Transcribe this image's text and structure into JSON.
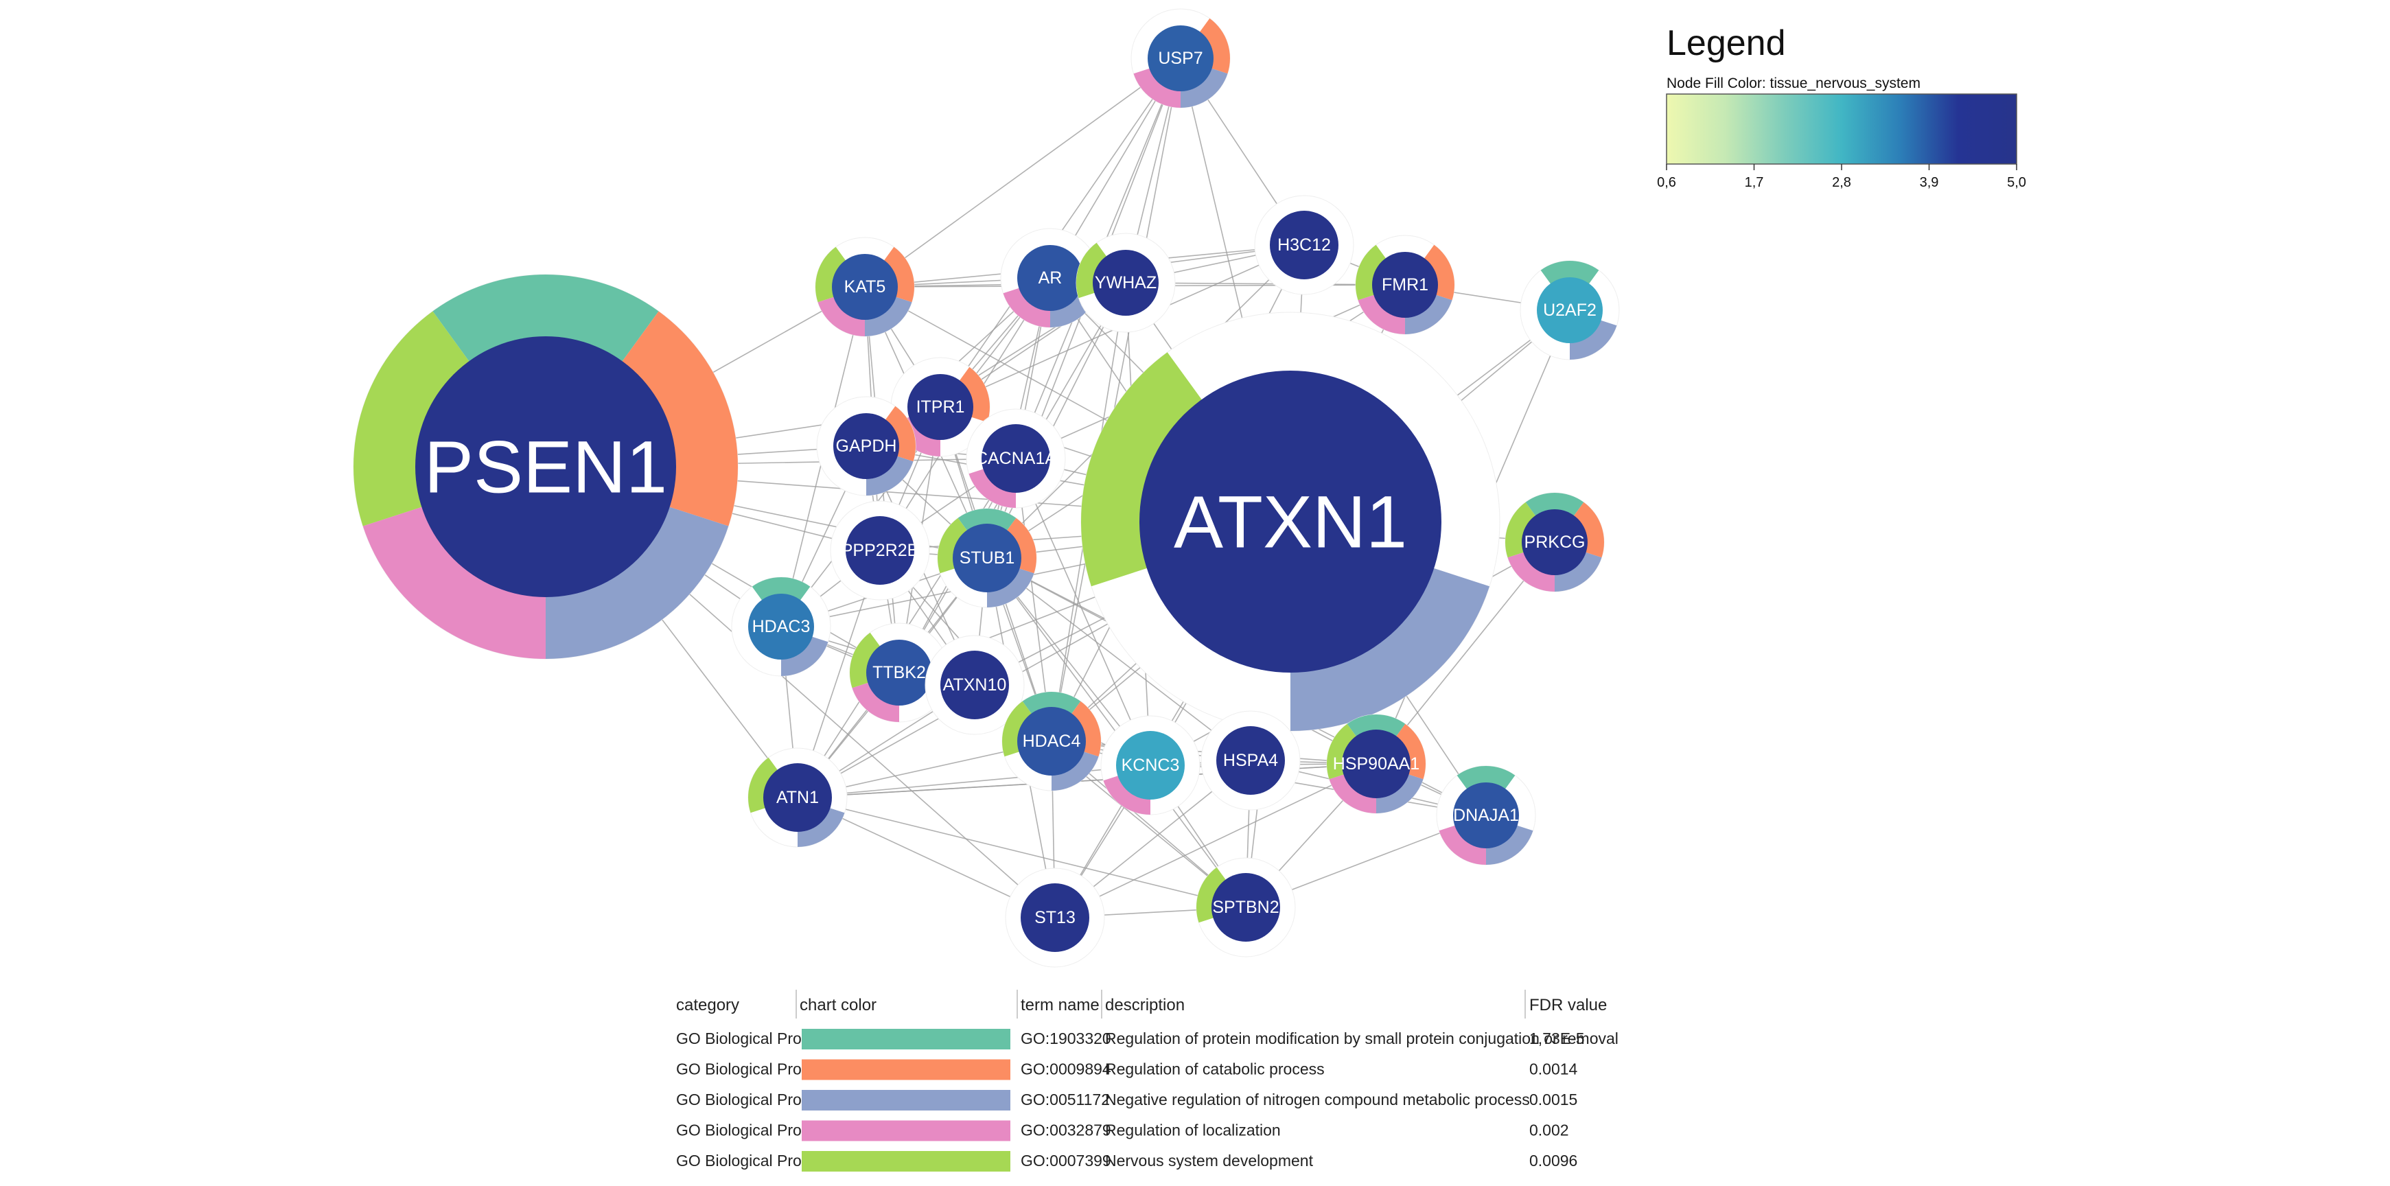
{
  "legend": {
    "title": "Legend",
    "subtitle": "Node Fill Color:  tissue_nervous_system",
    "gradient": [
      "#eef8b0",
      "#c6e9b4",
      "#7fcdbb",
      "#41b6c4",
      "#2c7fb8",
      "#253494",
      "#27348b"
    ],
    "ticks": [
      "0,6",
      "1,7",
      "2,8",
      "3,9",
      "5,0"
    ]
  },
  "table": {
    "headers": [
      "category",
      "chart color",
      "term name",
      "description",
      "FDR value"
    ],
    "rows": [
      {
        "category": "GO Biological Process",
        "color": "#66c2a5",
        "term": "GO:1903320",
        "description": "Regulation of protein modification by small protein conjugation or removal",
        "fdr": "1,73E-5"
      },
      {
        "category": "GO Biological Process",
        "color": "#fc8d62",
        "term": "GO:0009894",
        "description": "Regulation of catabolic process",
        "fdr": "0.0014"
      },
      {
        "category": "GO Biological Process",
        "color": "#8da0cb",
        "term": "GO:0051172",
        "description": "Negative regulation of nitrogen compound metabolic process",
        "fdr": "0.0015"
      },
      {
        "category": "GO Biological Process",
        "color": "#e78ac3",
        "term": "GO:0032879",
        "description": "Regulation of localization",
        "fdr": "0.002"
      },
      {
        "category": "GO Biological Process",
        "color": "#a6d854",
        "term": "GO:0007399",
        "description": "Nervous system development",
        "fdr": "0.0096"
      }
    ]
  },
  "nodes": [
    {
      "id": "PSEN1",
      "label": "PSEN1",
      "fill": "#27348b",
      "terms": [
        0,
        1,
        2,
        3,
        4
      ]
    },
    {
      "id": "ATXN1",
      "label": "ATXN1",
      "fill": "#27348b",
      "terms": [
        2,
        4
      ]
    },
    {
      "id": "USP7",
      "label": "USP7",
      "fill": "#2e60a8",
      "terms": [
        1,
        2,
        3
      ]
    },
    {
      "id": "KAT5",
      "label": "KAT5",
      "fill": "#2e55a3",
      "terms": [
        1,
        2,
        3,
        4
      ]
    },
    {
      "id": "AR",
      "label": "AR",
      "fill": "#2e55a3",
      "terms": [
        2,
        3
      ]
    },
    {
      "id": "YWHAZ",
      "label": "YWHAZ",
      "fill": "#27348b",
      "terms": [
        4
      ]
    },
    {
      "id": "H3C12",
      "label": "H3C12",
      "fill": "#27348b",
      "terms": []
    },
    {
      "id": "FMR1",
      "label": "FMR1",
      "fill": "#27348b",
      "terms": [
        1,
        2,
        3,
        4
      ]
    },
    {
      "id": "U2AF2",
      "label": "U2AF2",
      "fill": "#3aa7c4",
      "terms": [
        0,
        2
      ]
    },
    {
      "id": "ITPR1",
      "label": "ITPR1",
      "fill": "#27348b",
      "terms": [
        1,
        3
      ]
    },
    {
      "id": "GAPDH",
      "label": "GAPDH",
      "fill": "#27348b",
      "terms": [
        1,
        2
      ]
    },
    {
      "id": "CACNA1A",
      "label": "CACNA1A",
      "fill": "#27348b",
      "terms": [
        3
      ]
    },
    {
      "id": "PRKCG",
      "label": "PRKCG",
      "fill": "#27348b",
      "terms": [
        0,
        1,
        2,
        3,
        4
      ]
    },
    {
      "id": "PPP2R2B",
      "label": "PPP2R2B",
      "fill": "#27348b",
      "terms": []
    },
    {
      "id": "STUB1",
      "label": "STUB1",
      "fill": "#2e55a3",
      "terms": [
        0,
        1,
        2,
        4
      ]
    },
    {
      "id": "HDAC3",
      "label": "HDAC3",
      "fill": "#2f7ab5",
      "terms": [
        0,
        2
      ]
    },
    {
      "id": "TTBK2",
      "label": "TTBK2",
      "fill": "#2e55a3",
      "terms": [
        3,
        4
      ]
    },
    {
      "id": "ATXN10",
      "label": "ATXN10",
      "fill": "#27348b",
      "terms": []
    },
    {
      "id": "HDAC4",
      "label": "HDAC4",
      "fill": "#2e55a3",
      "terms": [
        0,
        1,
        2,
        4
      ]
    },
    {
      "id": "KCNC3",
      "label": "KCNC3",
      "fill": "#3aa7c4",
      "terms": [
        3
      ]
    },
    {
      "id": "HSPA4",
      "label": "HSPA4",
      "fill": "#27348b",
      "terms": []
    },
    {
      "id": "HSP90AA1",
      "label": "HSP90AA1",
      "fill": "#27348b",
      "terms": [
        0,
        1,
        2,
        3,
        4
      ]
    },
    {
      "id": "DNAJA1",
      "label": "DNAJA1",
      "fill": "#2e55a3",
      "terms": [
        0,
        2,
        3
      ]
    },
    {
      "id": "ATN1",
      "label": "ATN1",
      "fill": "#27348b",
      "terms": [
        2,
        4
      ]
    },
    {
      "id": "ST13",
      "label": "ST13",
      "fill": "#27348b",
      "terms": []
    },
    {
      "id": "SPTBN2",
      "label": "SPTBN2",
      "fill": "#27348b",
      "terms": [
        4
      ]
    }
  ],
  "edges": [
    [
      "PSEN1",
      "KAT5"
    ],
    [
      "PSEN1",
      "GAPDH"
    ],
    [
      "PSEN1",
      "ITPR1"
    ],
    [
      "PSEN1",
      "CACNA1A"
    ],
    [
      "PSEN1",
      "PPP2R2B"
    ],
    [
      "PSEN1",
      "STUB1"
    ],
    [
      "PSEN1",
      "HDAC3"
    ],
    [
      "PSEN1",
      "ATXN1"
    ],
    [
      "PSEN1",
      "ATN1"
    ],
    [
      "PSEN1",
      "ST13"
    ],
    [
      "PSEN1",
      "TTBK2"
    ],
    [
      "ATXN1",
      "USP7"
    ],
    [
      "ATXN1",
      "KAT5"
    ],
    [
      "ATXN1",
      "AR"
    ],
    [
      "ATXN1",
      "YWHAZ"
    ],
    [
      "ATXN1",
      "H3C12"
    ],
    [
      "ATXN1",
      "FMR1"
    ],
    [
      "ATXN1",
      "U2AF2"
    ],
    [
      "ATXN1",
      "ITPR1"
    ],
    [
      "ATXN1",
      "GAPDH"
    ],
    [
      "ATXN1",
      "CACNA1A"
    ],
    [
      "ATXN1",
      "PRKCG"
    ],
    [
      "ATXN1",
      "PPP2R2B"
    ],
    [
      "ATXN1",
      "STUB1"
    ],
    [
      "ATXN1",
      "HDAC3"
    ],
    [
      "ATXN1",
      "TTBK2"
    ],
    [
      "ATXN1",
      "ATXN10"
    ],
    [
      "ATXN1",
      "HDAC4"
    ],
    [
      "ATXN1",
      "KCNC3"
    ],
    [
      "ATXN1",
      "HSPA4"
    ],
    [
      "ATXN1",
      "HSP90AA1"
    ],
    [
      "ATXN1",
      "DNAJA1"
    ],
    [
      "ATXN1",
      "ATN1"
    ],
    [
      "ATXN1",
      "ST13"
    ],
    [
      "ATXN1",
      "SPTBN2"
    ],
    [
      "USP7",
      "KAT5"
    ],
    [
      "USP7",
      "AR"
    ],
    [
      "USP7",
      "YWHAZ"
    ],
    [
      "USP7",
      "H3C12"
    ],
    [
      "USP7",
      "CACNA1A"
    ],
    [
      "USP7",
      "ITPR1"
    ],
    [
      "USP7",
      "STUB1"
    ],
    [
      "USP7",
      "HDAC4"
    ],
    [
      "KAT5",
      "AR"
    ],
    [
      "KAT5",
      "YWHAZ"
    ],
    [
      "KAT5",
      "H3C12"
    ],
    [
      "KAT5",
      "FMR1"
    ],
    [
      "KAT5",
      "ITPR1"
    ],
    [
      "KAT5",
      "STUB1"
    ],
    [
      "KAT5",
      "HDAC3"
    ],
    [
      "KAT5",
      "PPP2R2B"
    ],
    [
      "KAT5",
      "TTBK2"
    ],
    [
      "AR",
      "YWHAZ"
    ],
    [
      "AR",
      "H3C12"
    ],
    [
      "AR",
      "STUB1"
    ],
    [
      "AR",
      "HDAC3"
    ],
    [
      "AR",
      "HSP90AA1"
    ],
    [
      "AR",
      "GAPDH"
    ],
    [
      "AR",
      "CACNA1A"
    ],
    [
      "AR",
      "ITPR1"
    ],
    [
      "AR",
      "PPP2R2B"
    ],
    [
      "YWHAZ",
      "H3C12"
    ],
    [
      "YWHAZ",
      "FMR1"
    ],
    [
      "YWHAZ",
      "ITPR1"
    ],
    [
      "YWHAZ",
      "STUB1"
    ],
    [
      "YWHAZ",
      "GAPDH"
    ],
    [
      "YWHAZ",
      "HDAC4"
    ],
    [
      "YWHAZ",
      "KCNC3"
    ],
    [
      "YWHAZ",
      "TTBK2"
    ],
    [
      "H3C12",
      "FMR1"
    ],
    [
      "H3C12",
      "ITPR1"
    ],
    [
      "H3C12",
      "STUB1"
    ],
    [
      "H3C12",
      "HDAC4"
    ],
    [
      "FMR1",
      "U2AF2"
    ],
    [
      "FMR1",
      "CACNA1A"
    ],
    [
      "FMR1",
      "STUB1"
    ],
    [
      "U2AF2",
      "HSP90AA1"
    ],
    [
      "U2AF2",
      "HDAC4"
    ],
    [
      "ITPR1",
      "GAPDH"
    ],
    [
      "ITPR1",
      "CACNA1A"
    ],
    [
      "ITPR1",
      "STUB1"
    ],
    [
      "ITPR1",
      "PPP2R2B"
    ],
    [
      "ITPR1",
      "TTBK2"
    ],
    [
      "ITPR1",
      "HDAC4"
    ],
    [
      "GAPDH",
      "CACNA1A"
    ],
    [
      "GAPDH",
      "STUB1"
    ],
    [
      "GAPDH",
      "PPP2R2B"
    ],
    [
      "GAPDH",
      "HDAC3"
    ],
    [
      "GAPDH",
      "ATXN10"
    ],
    [
      "CACNA1A",
      "STUB1"
    ],
    [
      "CACNA1A",
      "PPP2R2B"
    ],
    [
      "CACNA1A",
      "TTBK2"
    ],
    [
      "CACNA1A",
      "KCNC3"
    ],
    [
      "CACNA1A",
      "HDAC4"
    ],
    [
      "CACNA1A",
      "ATN1"
    ],
    [
      "PRKCG",
      "HSP90AA1"
    ],
    [
      "PRKCG",
      "KCNC3"
    ],
    [
      "PPP2R2B",
      "STUB1"
    ],
    [
      "PPP2R2B",
      "HDAC3"
    ],
    [
      "PPP2R2B",
      "TTBK2"
    ],
    [
      "PPP2R2B",
      "ATXN10"
    ],
    [
      "PPP2R2B",
      "HDAC4"
    ],
    [
      "PPP2R2B",
      "ATN1"
    ],
    [
      "STUB1",
      "HDAC3"
    ],
    [
      "STUB1",
      "TTBK2"
    ],
    [
      "STUB1",
      "ATXN10"
    ],
    [
      "STUB1",
      "HDAC4"
    ],
    [
      "STUB1",
      "KCNC3"
    ],
    [
      "STUB1",
      "HSPA4"
    ],
    [
      "STUB1",
      "HSP90AA1"
    ],
    [
      "STUB1",
      "DNAJA1"
    ],
    [
      "STUB1",
      "ATN1"
    ],
    [
      "STUB1",
      "ST13"
    ],
    [
      "STUB1",
      "SPTBN2"
    ],
    [
      "HDAC3",
      "TTBK2"
    ],
    [
      "HDAC3",
      "HDAC4"
    ],
    [
      "HDAC3",
      "ATN1"
    ],
    [
      "HDAC3",
      "ATXN10"
    ],
    [
      "TTBK2",
      "ATXN10"
    ],
    [
      "TTBK2",
      "HDAC4"
    ],
    [
      "TTBK2",
      "ATN1"
    ],
    [
      "ATXN10",
      "HDAC4"
    ],
    [
      "ATXN10",
      "KCNC3"
    ],
    [
      "ATXN10",
      "ATN1"
    ],
    [
      "ATXN10",
      "SPTBN2"
    ],
    [
      "HDAC4",
      "KCNC3"
    ],
    [
      "HDAC4",
      "HSPA4"
    ],
    [
      "HDAC4",
      "HSP90AA1"
    ],
    [
      "HDAC4",
      "ST13"
    ],
    [
      "HDAC4",
      "SPTBN2"
    ],
    [
      "HDAC4",
      "ATN1"
    ],
    [
      "HDAC4",
      "DNAJA1"
    ],
    [
      "KCNC3",
      "HSPA4"
    ],
    [
      "KCNC3",
      "HSP90AA1"
    ],
    [
      "KCNC3",
      "ST13"
    ],
    [
      "KCNC3",
      "SPTBN2"
    ],
    [
      "KCNC3",
      "ATN1"
    ],
    [
      "HSPA4",
      "HSP90AA1"
    ],
    [
      "HSPA4",
      "ST13"
    ],
    [
      "HSPA4",
      "SPTBN2"
    ],
    [
      "HSPA4",
      "DNAJA1"
    ],
    [
      "HSP90AA1",
      "DNAJA1"
    ],
    [
      "HSP90AA1",
      "ST13"
    ],
    [
      "HSP90AA1",
      "SPTBN2"
    ],
    [
      "HSP90AA1",
      "ATN1"
    ],
    [
      "ATN1",
      "ST13"
    ],
    [
      "ATN1",
      "SPTBN2"
    ],
    [
      "ATN1",
      "HSP90AA1"
    ],
    [
      "ST13",
      "SPTBN2"
    ],
    [
      "DNAJA1",
      "SPTBN2"
    ]
  ]
}
